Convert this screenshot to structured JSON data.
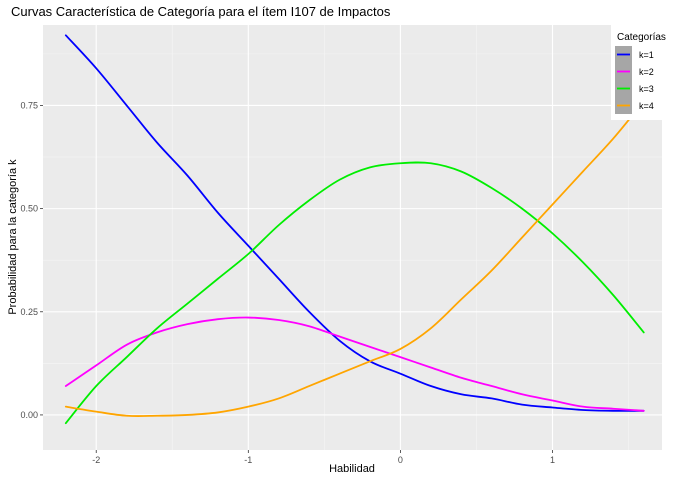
{
  "chart_data": {
    "type": "line",
    "title": "Curvas Característica de Categoría para el ítem I107 de Impactos",
    "xlabel": "Habilidad",
    "ylabel": "Probabilidad para la categoría k",
    "xlim": [
      -2.35,
      1.72
    ],
    "ylim": [
      -0.085,
      0.945
    ],
    "x_ticks": [
      -2,
      -1,
      0,
      1
    ],
    "x_tick_labels": [
      "-2",
      "-1",
      "0",
      "1"
    ],
    "y_ticks": [
      0.0,
      0.25,
      0.5,
      0.75
    ],
    "y_tick_labels": [
      "0.00",
      "0.25",
      "0.50",
      "0.75"
    ],
    "grid": true,
    "legend": {
      "title": "Categorías",
      "placement": "top-right",
      "entries": [
        "k=1",
        "k=2",
        "k=3",
        "k=4"
      ]
    },
    "x": [
      -2.2,
      -2.0,
      -1.8,
      -1.6,
      -1.4,
      -1.2,
      -1.0,
      -0.8,
      -0.6,
      -0.4,
      -0.2,
      0.0,
      0.2,
      0.4,
      0.6,
      0.8,
      1.0,
      1.2,
      1.4,
      1.6
    ],
    "series": [
      {
        "name": "k=1",
        "color": "#0000ff",
        "values": [
          0.92,
          0.84,
          0.75,
          0.66,
          0.58,
          0.49,
          0.41,
          0.33,
          0.25,
          0.18,
          0.13,
          0.1,
          0.07,
          0.05,
          0.04,
          0.025,
          0.018,
          0.012,
          0.01,
          0.01
        ]
      },
      {
        "name": "k=2",
        "color": "#ff00ff",
        "values": [
          0.07,
          0.12,
          0.17,
          0.2,
          0.22,
          0.232,
          0.236,
          0.23,
          0.215,
          0.19,
          0.165,
          0.14,
          0.115,
          0.09,
          0.07,
          0.05,
          0.035,
          0.02,
          0.015,
          0.01
        ]
      },
      {
        "name": "k=3",
        "color": "#00ee00",
        "values": [
          -0.02,
          0.07,
          0.14,
          0.21,
          0.27,
          0.33,
          0.39,
          0.46,
          0.52,
          0.57,
          0.6,
          0.61,
          0.61,
          0.59,
          0.55,
          0.5,
          0.44,
          0.37,
          0.29,
          0.2
        ]
      },
      {
        "name": "k=4",
        "color": "#ffa500",
        "values": [
          0.02,
          0.008,
          -0.002,
          -0.002,
          0.0,
          0.006,
          0.02,
          0.04,
          0.07,
          0.1,
          0.13,
          0.16,
          0.21,
          0.28,
          0.35,
          0.43,
          0.51,
          0.59,
          0.67,
          0.76
        ]
      }
    ]
  }
}
